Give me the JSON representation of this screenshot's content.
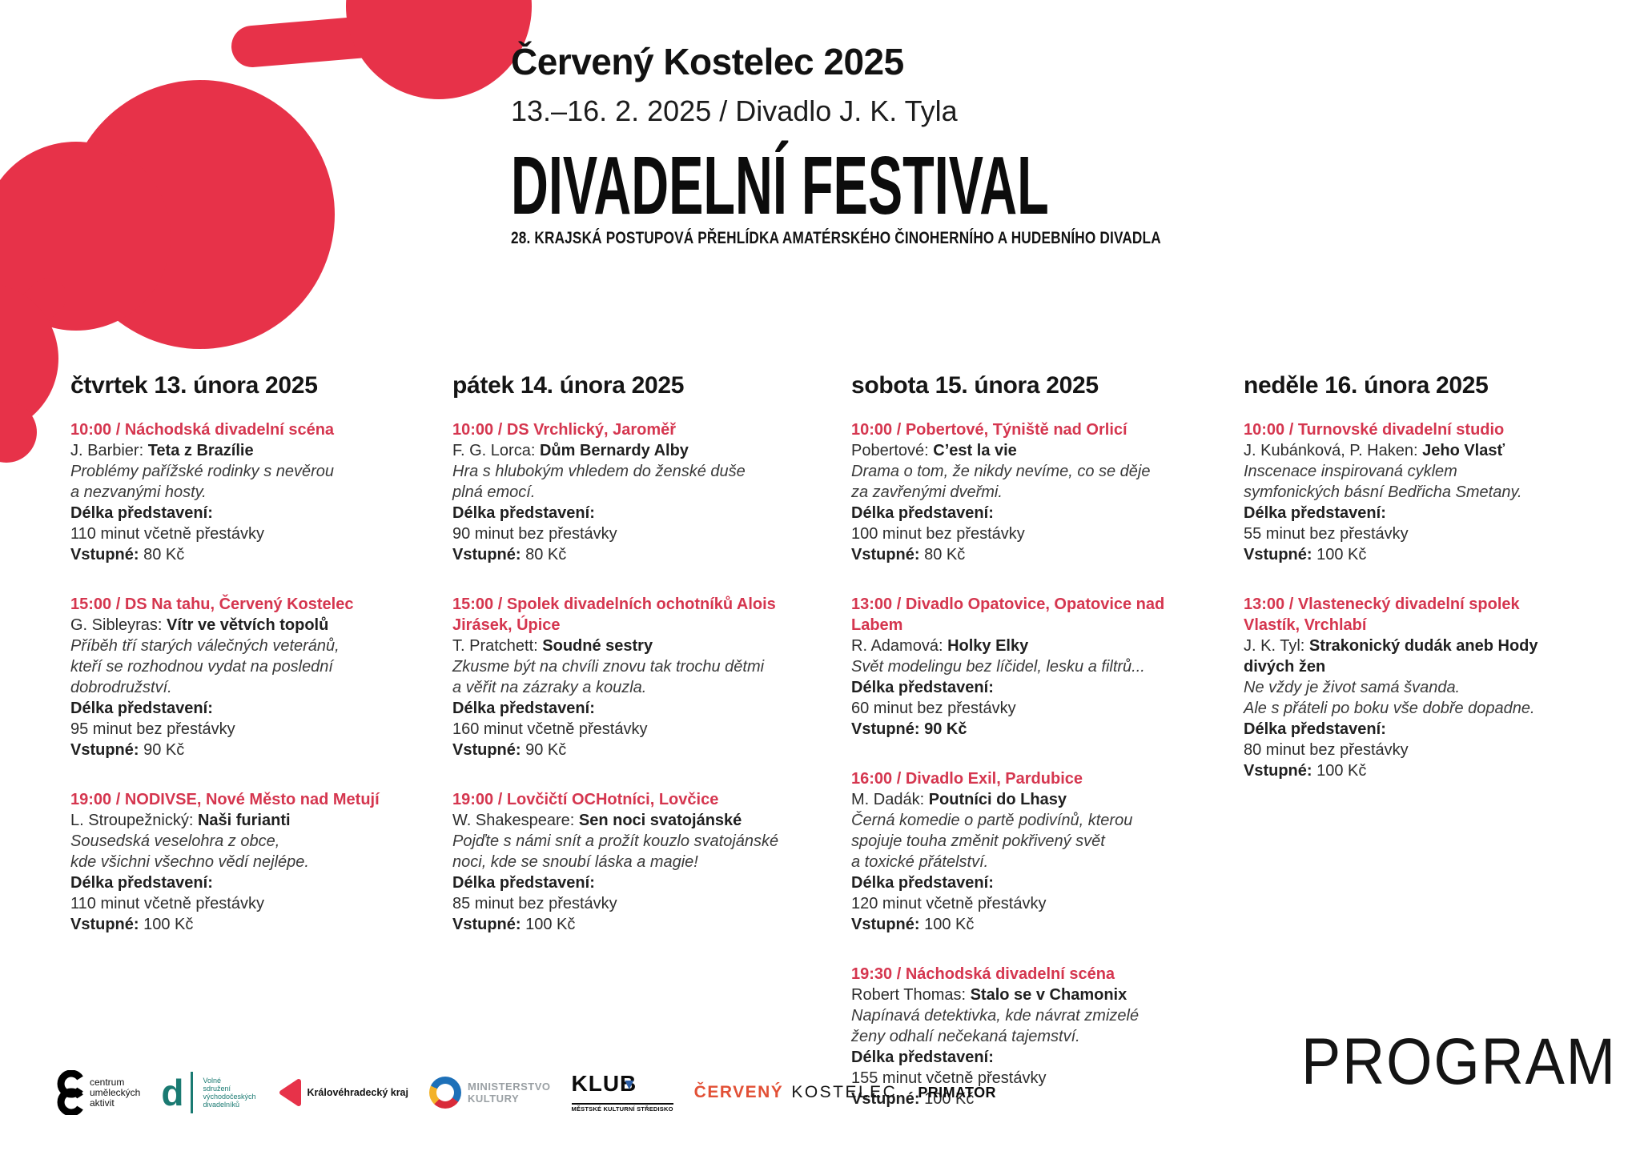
{
  "header": {
    "city_year": "Červený Kostelec 2025",
    "date_venue": "13.–16. 2. 2025 / Divadlo J. K. Tyla",
    "title": "DIVADELNÍ FESTIVAL",
    "subtitle": "28. KRAJSKÁ POSTUPOVÁ PŘEHLÍDKA AMATÉRSKÉHO ČINOHERNÍHO A HUDEBNÍHO DIVADLA"
  },
  "labels": {
    "duration": "Délka představení:",
    "price": "Vstupné:"
  },
  "days": [
    {
      "heading": "čtvrtek 13. února 2025",
      "events": [
        {
          "time_venue": "10:00 / Náchodská divadelní scéna",
          "author": "J. Barbier:",
          "title": "Teta z Brazílie",
          "description": "Problémy pařížské rodinky s nevěrou\na nezvanými hosty.",
          "duration": "110 minut včetně přestávky",
          "price": "80 Kč"
        },
        {
          "time_venue": "15:00 / DS Na tahu, Červený Kostelec",
          "author": "G. Sibleyras:",
          "title": "Vítr ve větvích topolů",
          "description": "Příběh tří starých válečných veteránů,\nkteří se rozhodnou vydat na poslední\ndobrodružství.",
          "duration": "95 minut bez přestávky",
          "price": "90 Kč"
        },
        {
          "time_venue": "19:00 / NODIVSE, Nové Město nad Metují",
          "author": "L. Stroupežnický:",
          "title": "Naši furianti",
          "description": "Sousedská veselohra z obce,\nkde všichni všechno vědí nejlépe.",
          "duration": "110 minut včetně přestávky",
          "price": "100 Kč"
        }
      ]
    },
    {
      "heading": "pátek 14. února 2025",
      "events": [
        {
          "time_venue": "10:00 / DS Vrchlický, Jaroměř",
          "author": "F. G. Lorca:",
          "title": "Dům Bernardy Alby",
          "description": "Hra s hlubokým vhledem do ženské duše\nplná emocí.",
          "duration": "90 minut bez přestávky",
          "price": "80 Kč"
        },
        {
          "time_venue": "15:00 / Spolek divadelních ochotníků Alois\nJirásek, Úpice",
          "author": "T. Pratchett:",
          "title": "Soudné sestry",
          "description": "Zkusme být na chvíli znovu tak trochu dětmi\na věřit na zázraky a kouzla.",
          "duration": "160 minut včetně přestávky",
          "price": "90 Kč"
        },
        {
          "time_venue": "19:00 / Lovčičtí OCHotníci, Lovčice",
          "author": "W. Shakespeare:",
          "title": "Sen noci svatojánské",
          "description": "Pojďte s námi snít a prožít kouzlo svatojánské\nnoci, kde se snoubí láska a magie!",
          "duration": "85 minut bez přestávky",
          "price": "100 Kč"
        }
      ]
    },
    {
      "heading": "sobota 15. února 2025",
      "events": [
        {
          "time_venue": "10:00 / Pobertové, Týniště nad Orlicí",
          "author": "Pobertové:",
          "title": "Cʼest la vie",
          "description": "Drama o tom, že nikdy nevíme, co se děje\nza zavřenými dveřmi.",
          "duration": "100 minut bez přestávky",
          "price": "80 Kč"
        },
        {
          "time_venue": "13:00 / Divadlo Opatovice, Opatovice nad\nLabem",
          "author": "R. Adamová:",
          "title": "Holky Elky",
          "description": "Svět modelingu bez líčidel, lesku a filtrů...",
          "duration": "60 minut bez přestávky",
          "price": "90 Kč",
          "price_bold": true
        },
        {
          "time_venue": "16:00 / Divadlo Exil, Pardubice",
          "author": "M. Dadák:",
          "title": "Poutníci do Lhasy",
          "description": "Černá komedie o partě podivínů, kterou\nspojuje touha změnit pokřivený svět\na toxické přátelství.",
          "duration": "120 minut včetně přestávky",
          "price": "100 Kč"
        },
        {
          "time_venue": "19:30 / Náchodská divadelní scéna",
          "author": "Robert Thomas:",
          "title": "Stalo se v Chamonix",
          "description": "Napínavá detektivka, kde návrat zmizelé\nženy odhalí nečekaná tajemství.",
          "duration": "155 minut včetně přestávky",
          "price": "100 Kč"
        }
      ]
    },
    {
      "heading": "neděle 16. února 2025",
      "events": [
        {
          "time_venue": "10:00 / Turnovské divadelní studio",
          "author": "J. Kubánková, P. Haken:",
          "title": "Jeho Vlasť",
          "description": "Inscenace inspirovaná cyklem\nsymfonických básní Bedřicha Smetany.",
          "duration": "55 minut bez přestávky",
          "price": "100 Kč"
        },
        {
          "time_venue": "13:00 / Vlastenecký divadelní spolek\nVlastík, Vrchlabí",
          "author": "J. K. Tyl:",
          "title": "Strakonický dudák aneb Hody\ndivých žen",
          "description": "Ne vždy je život samá švanda.\nAle s přáteli po boku vše dobře dopadne.",
          "duration": "80 minut bez přestávky",
          "price": "100 Kč"
        }
      ]
    }
  ],
  "footer": {
    "program_label": "PROGRAM",
    "logos": {
      "cua": {
        "text": "centrum\numěleckých\naktivit"
      },
      "vsvd": {
        "glyph": "d",
        "text": "Volné\nsdružení\nvýchodočeských\ndivadelníků"
      },
      "khk": {
        "text": "Královéhradecký kraj"
      },
      "ministry": {
        "text": "MINISTERSTVO\nKULTURY"
      },
      "klub": {
        "title": "KLUB",
        "subtitle": "MĚSTSKÉ KULTURNÍ STŘEDISKO"
      },
      "cerveny_kostelec": {
        "word1": "ČERVENÝ",
        "word2": "KOSTELEC"
      },
      "primator": {
        "text": "PRIMATOR"
      }
    }
  },
  "colors": {
    "decor_red": "#e73249",
    "event_heading_red": "#d5364f",
    "vsvd_teal": "#1a7a72",
    "ministry_gray": "#9aa0a4",
    "klub_blue": "#2b5ea7",
    "kostelec_orange": "#e25036"
  }
}
